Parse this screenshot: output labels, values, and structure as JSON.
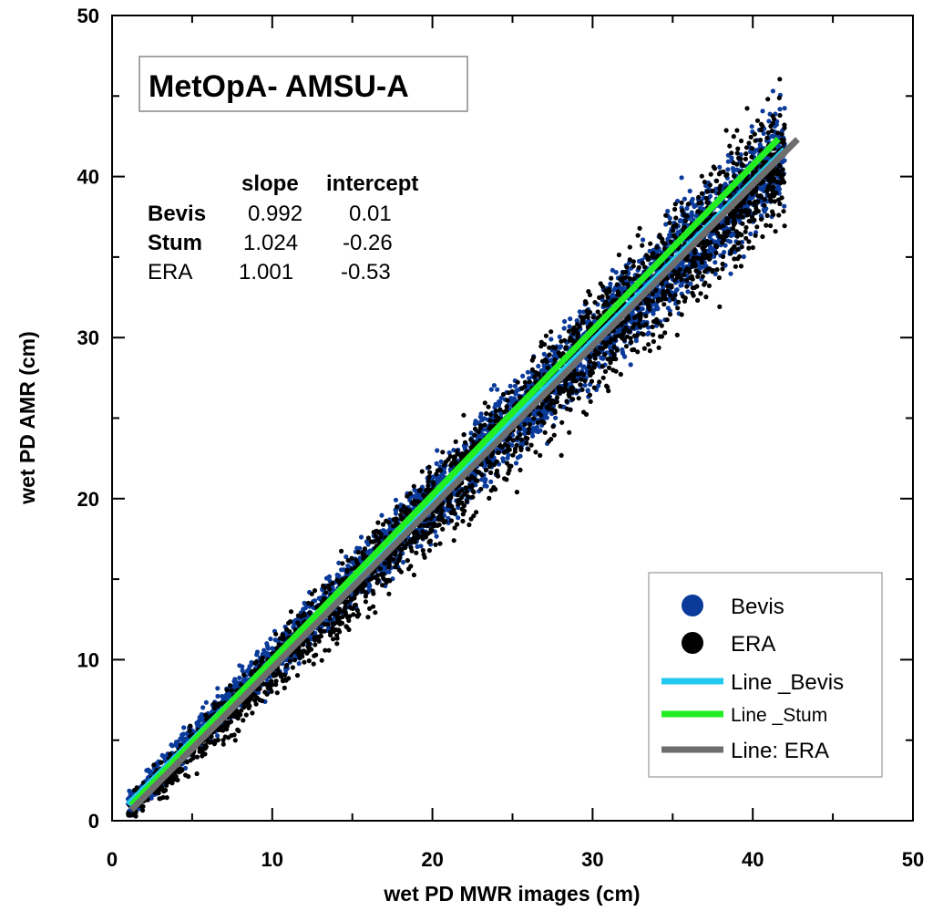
{
  "chart_data": {
    "type": "scatter",
    "title": "MetOpA- AMSU-A",
    "xlabel": "wet PD MWR images (cm)",
    "ylabel": "wet PD AMR (cm)",
    "xlim": [
      0,
      50
    ],
    "ylim": [
      0,
      50
    ],
    "x_ticks": [
      "0",
      "10",
      "20",
      "30",
      "40",
      "50"
    ],
    "y_ticks": [
      "0",
      "10",
      "20",
      "30",
      "40",
      "50"
    ],
    "grid": false,
    "legend_position": "bottom-right",
    "stats_table": {
      "headers": [
        "slope",
        "intercept"
      ],
      "rows": [
        {
          "name": "Bevis",
          "slope": "0.992",
          "intercept": "0.01"
        },
        {
          "name": "Stum",
          "slope": "1.024",
          "intercept": "-0.26"
        },
        {
          "name": "ERA",
          "slope": "1.001",
          "intercept": "-0.53"
        }
      ]
    },
    "series": [
      {
        "name": "Bevis",
        "kind": "scatter",
        "color": "#0a3a9a",
        "x_range": [
          1,
          42
        ]
      },
      {
        "name": "ERA",
        "kind": "scatter",
        "color": "#000000",
        "x_range": [
          1,
          42
        ]
      }
    ],
    "fit_lines": [
      {
        "name": "Line _Bevis",
        "color": "#22c8ee",
        "slope": 0.992,
        "intercept": 0.01,
        "x_range": [
          1,
          42
        ]
      },
      {
        "name": "Line _Stum",
        "color": "#22ee22",
        "slope": 1.024,
        "intercept": -0.26,
        "x_range": [
          1.2,
          41.6
        ]
      },
      {
        "name": "Line: ERA",
        "color": "#6e6e6e",
        "slope": 1.001,
        "intercept": -0.53,
        "x_range": [
          1.2,
          42.8
        ]
      }
    ],
    "legend": [
      {
        "label": "Bevis",
        "marker": "dot",
        "color": "#0a3a9a"
      },
      {
        "label": "ERA",
        "marker": "dot",
        "color": "#000000"
      },
      {
        "label": "Line _Bevis",
        "marker": "line",
        "color": "#22c8ee"
      },
      {
        "label": "Line _Stum",
        "marker": "line",
        "color": "#22ee22"
      },
      {
        "label": "Line: ERA",
        "marker": "line",
        "color": "#6e6e6e"
      }
    ]
  }
}
